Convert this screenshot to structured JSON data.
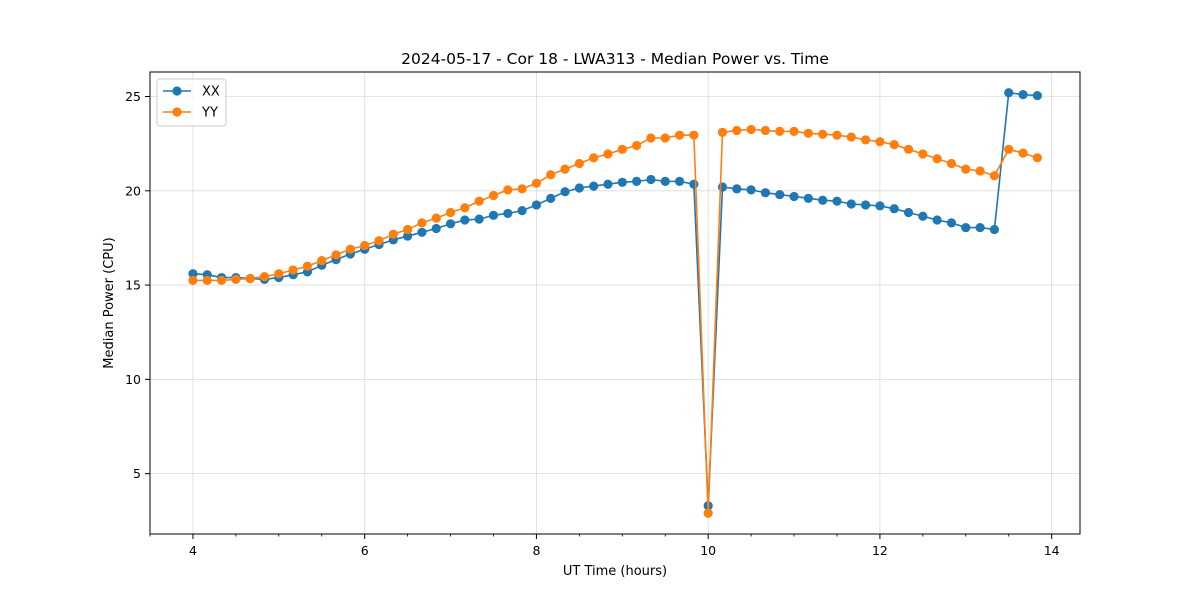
{
  "chart_data": {
    "type": "line",
    "title": "2024-05-17 - Cor 18 - LWA313 - Median Power vs. Time",
    "xlabel": "UT Time (hours)",
    "ylabel": "Median Power (CPU)",
    "xlim": [
      3.5,
      14.33
    ],
    "ylim": [
      1.8,
      26.3
    ],
    "xticks": [
      4,
      6,
      8,
      10,
      12,
      14
    ],
    "yticks": [
      5,
      10,
      15,
      20,
      25
    ],
    "grid": true,
    "legend_position": "top-left",
    "x": [
      4.0,
      4.1667,
      4.3333,
      4.5,
      4.6667,
      4.8333,
      5.0,
      5.1667,
      5.3333,
      5.5,
      5.6667,
      5.8333,
      6.0,
      6.1667,
      6.3333,
      6.5,
      6.6667,
      6.8333,
      7.0,
      7.1667,
      7.3333,
      7.5,
      7.6667,
      7.8333,
      8.0,
      8.1667,
      8.3333,
      8.5,
      8.6667,
      8.8333,
      9.0,
      9.1667,
      9.3333,
      9.5,
      9.6667,
      9.8333,
      10.0,
      10.1667,
      10.3333,
      10.5,
      10.6667,
      10.8333,
      11.0,
      11.1667,
      11.3333,
      11.5,
      11.6667,
      11.8333,
      12.0,
      12.1667,
      12.3333,
      12.5,
      12.6667,
      12.8333,
      13.0,
      13.1667,
      13.3333,
      13.5,
      13.6667,
      13.8333
    ],
    "series": [
      {
        "name": "XX",
        "color": "#1f77b4",
        "values": [
          15.6,
          15.55,
          15.4,
          15.4,
          15.35,
          15.3,
          15.4,
          15.55,
          15.7,
          16.05,
          16.35,
          16.65,
          16.9,
          17.15,
          17.4,
          17.6,
          17.8,
          18.0,
          18.25,
          18.45,
          18.5,
          18.7,
          18.8,
          18.95,
          19.25,
          19.6,
          19.95,
          20.15,
          20.25,
          20.35,
          20.45,
          20.5,
          20.6,
          20.5,
          20.5,
          20.35,
          3.3,
          20.2,
          20.1,
          20.05,
          19.9,
          19.8,
          19.7,
          19.6,
          19.5,
          19.45,
          19.3,
          19.25,
          19.2,
          19.05,
          18.85,
          18.65,
          18.45,
          18.3,
          18.05,
          18.05,
          17.95,
          25.2,
          25.1,
          25.05
        ]
      },
      {
        "name": "YY",
        "color": "#ff7f0e",
        "values": [
          15.25,
          15.25,
          15.25,
          15.3,
          15.35,
          15.45,
          15.6,
          15.8,
          16.0,
          16.3,
          16.6,
          16.9,
          17.1,
          17.35,
          17.7,
          17.95,
          18.3,
          18.55,
          18.85,
          19.1,
          19.45,
          19.75,
          20.05,
          20.1,
          20.4,
          20.85,
          21.15,
          21.45,
          21.75,
          21.95,
          22.2,
          22.4,
          22.8,
          22.8,
          22.95,
          22.95,
          2.9,
          23.1,
          23.2,
          23.25,
          23.2,
          23.15,
          23.15,
          23.05,
          23.0,
          22.95,
          22.85,
          22.7,
          22.6,
          22.45,
          22.2,
          21.95,
          21.7,
          21.45,
          21.15,
          21.05,
          20.8,
          22.2,
          22.0,
          21.75
        ]
      }
    ]
  }
}
